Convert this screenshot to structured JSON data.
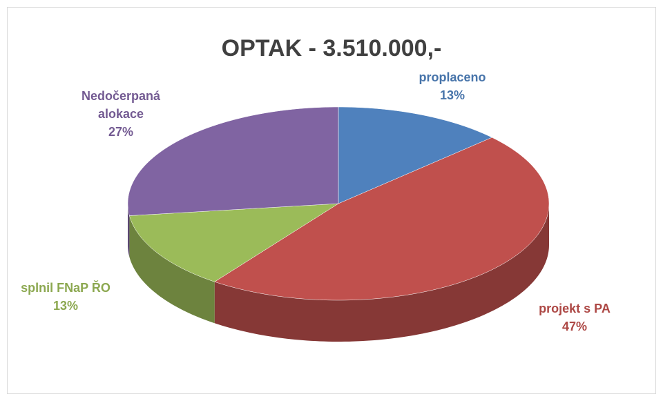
{
  "chart_data": {
    "type": "pie3d",
    "title": "OPTAK - 3.510.000,-",
    "categories": [
      "proplaceno",
      "projekt s PA",
      "splnil FNaP ŘO",
      "Nedočerpaná alokace"
    ],
    "values": [
      13,
      47,
      13,
      27
    ],
    "value_labels": [
      "13%",
      "47%",
      "13%",
      "27%"
    ],
    "colors": [
      "#4f81bd",
      "#c0504d",
      "#9bbb59",
      "#8064a2"
    ]
  }
}
